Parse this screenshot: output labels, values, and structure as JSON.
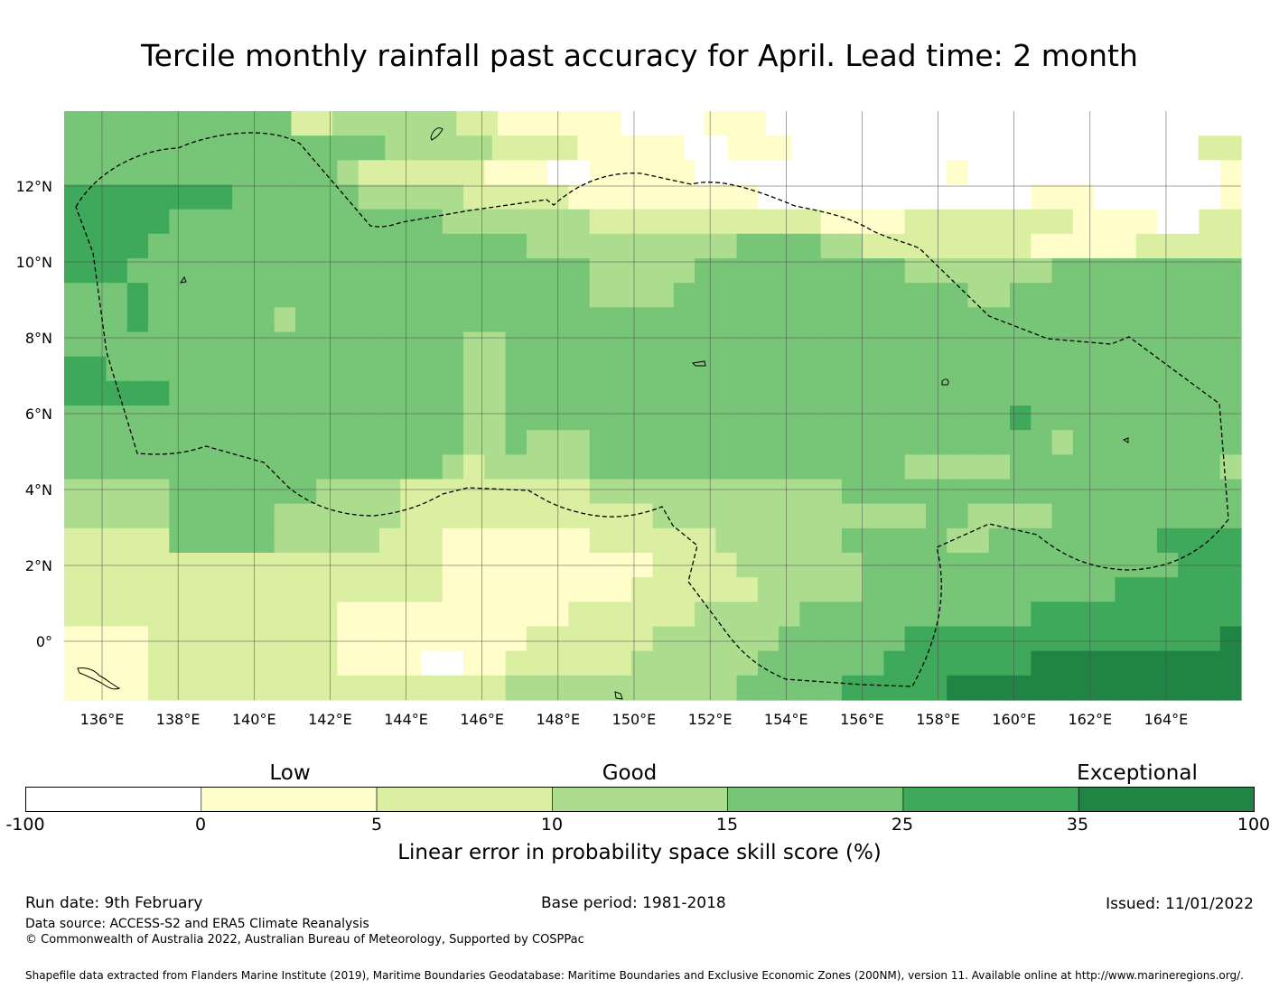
{
  "title": "Tercile monthly rainfall past accuracy for April. Lead time: 2 month",
  "map": {
    "lon_labels": [
      "136°E",
      "138°E",
      "140°E",
      "142°E",
      "144°E",
      "146°E",
      "148°E",
      "150°E",
      "152°E",
      "154°E",
      "156°E",
      "158°E",
      "160°E",
      "162°E",
      "164°E"
    ],
    "lon_values": [
      136,
      138,
      140,
      142,
      144,
      146,
      148,
      150,
      152,
      154,
      156,
      158,
      160,
      162,
      164
    ],
    "lat_labels": [
      "12°N",
      "10°N",
      "8°N",
      "6°N",
      "4°N",
      "2°N",
      "0°"
    ],
    "lat_values": [
      12,
      10,
      8,
      6,
      4,
      2,
      0
    ],
    "extent": {
      "lon_min": 135,
      "lon_max": 166,
      "lat_min": -1.5,
      "lat_max": 14
    },
    "grid_res_deg": 0.833
  },
  "colorbar": {
    "category_labels": [
      "Low",
      "Good",
      "Exceptional"
    ],
    "ticks": [
      "-100",
      "0",
      "5",
      "10",
      "15",
      "25",
      "35",
      "100"
    ],
    "colors": [
      "#ffffff",
      "#fffdc9",
      "#daefa1",
      "#acdd8e",
      "#77c577",
      "#3ea95b",
      "#208544"
    ],
    "label": "Linear error in probability space skill score (%)"
  },
  "footer": {
    "run_date": "Run date: 9th February",
    "base_period": "Base period: 1981-2018",
    "issued": "Issued: 11/01/2022",
    "data_source": "Data source: ACCESS-S2 and ERA5 Climate Reanalysis",
    "copyright": "© Commonwealth of Australia 2022, Australian Bureau of Meteorology, Supported by COSPPac",
    "shapefile": "Shapefile data extracted from Flanders Marine Institute (2019), Maritime Boundaries Geodatabase: Maritime Boundaries and Exclusive Economic Zones (200NM), version 11. Available online at http://www.marineregions.org/."
  }
}
